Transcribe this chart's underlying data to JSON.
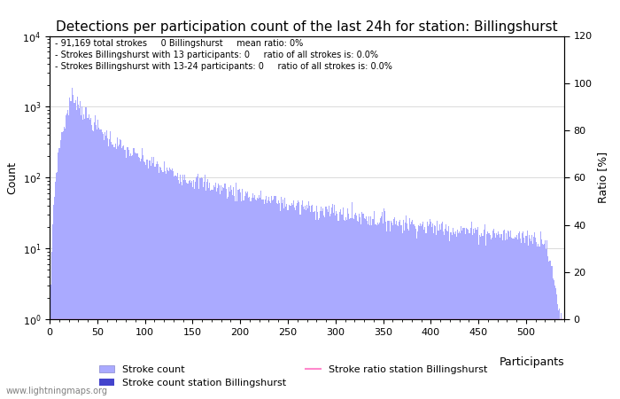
{
  "title": "Detections per participation count of the last 24h for station: Billingshurst",
  "annotation_lines": [
    "91,169 total strokes     0 Billingshurst     mean ratio: 0%",
    "Strokes Billingshurst with 13 participants: 0     ratio of all strokes is: 0.0%",
    "Strokes Billingshurst with 13-24 participants: 0     ratio of all strokes is: 0.0%"
  ],
  "xlabel": "Participants",
  "ylabel_left": "Count",
  "ylabel_right": "Ratio [%]",
  "xmin": 0,
  "xmax": 540,
  "ylog_min": 1,
  "ylog_max": 10000,
  "y2min": 0,
  "y2max": 120,
  "bar_color": "#aaaaff",
  "bar_color_station": "#4444cc",
  "ratio_color": "#ff88cc",
  "watermark": "www.lightningmaps.org",
  "legend_stroke_count": "Stroke count",
  "legend_stroke_station": "Stroke count station Billingshurst",
  "legend_ratio": "Stroke ratio station Billingshurst",
  "title_fontsize": 11,
  "annotation_fontsize": 8,
  "axis_fontsize": 9
}
